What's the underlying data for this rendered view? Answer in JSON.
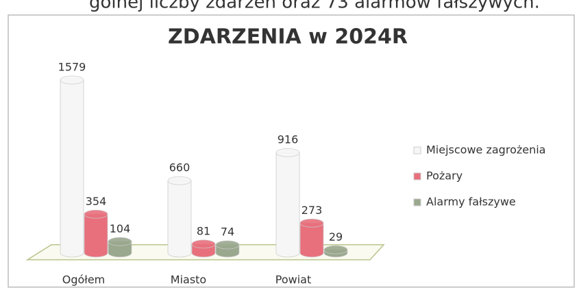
{
  "header_fragment": "gólnej liczby zdarzeń oraz 73 alarmów fałszywych.",
  "chart_data": {
    "type": "bar3d",
    "title": "ZDARZENIA w 2024R",
    "categories": [
      "Ogółem",
      "Miasto",
      "Powiat"
    ],
    "series": [
      {
        "name": "Miejscowe zagrożenia",
        "color": "#f6f6f6",
        "values": [
          1579,
          660,
          916
        ]
      },
      {
        "name": "Pożary",
        "color": "#e8707c",
        "values": [
          354,
          81,
          273
        ]
      },
      {
        "name": "Alarmy fałszywe",
        "color": "#9aa88e",
        "values": [
          104,
          74,
          29
        ]
      }
    ],
    "legend": "right"
  }
}
